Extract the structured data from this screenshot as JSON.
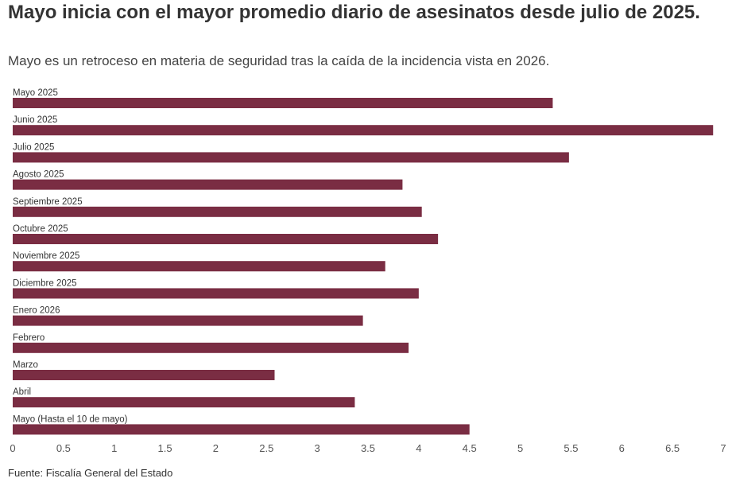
{
  "title": "Mayo inicia con el mayor promedio diario de asesinatos desde julio de 2025.",
  "subtitle": "Mayo es un retroceso en materia de seguridad tras la caída de la incidencia vista en 2026.",
  "source": "Fuente: Fiscalía General del Estado",
  "colors": {
    "bar": "#7a2d43",
    "axis_text": "#555555",
    "label_text": "#333333"
  },
  "chart_data": {
    "type": "bar",
    "orientation": "horizontal",
    "categories": [
      "Mayo 2025",
      "Junio 2025",
      "Julio 2025",
      "Agosto 2025",
      "Septiembre 2025",
      "Octubre 2025",
      "Noviembre 2025",
      "Diciembre 2025",
      "Enero 2026",
      "Febrero",
      "Marzo",
      "Abril",
      "Mayo (Hasta el 10 de mayo)"
    ],
    "values": [
      5.32,
      6.9,
      5.48,
      3.84,
      4.03,
      4.19,
      3.67,
      4.0,
      3.45,
      3.9,
      2.58,
      3.37,
      4.5
    ],
    "xlim": [
      0,
      7
    ],
    "xticks": [
      "0",
      "0.5",
      "1",
      "1.5",
      "2",
      "2.5",
      "3",
      "3.5",
      "4",
      "4.5",
      "5",
      "5.5",
      "6",
      "6.5",
      "7"
    ],
    "xlabel": "",
    "ylabel": "",
    "grid": false,
    "legend": "none"
  }
}
